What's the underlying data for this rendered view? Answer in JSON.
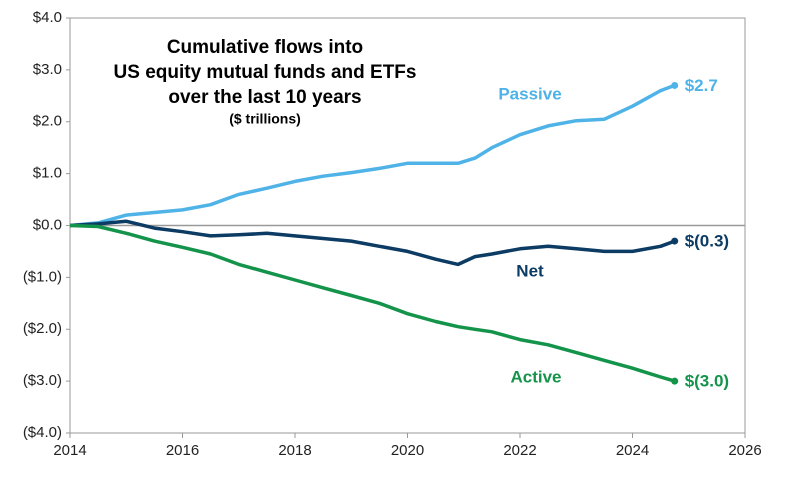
{
  "chart_data": {
    "type": "line",
    "title": [
      "Cumulative flows into",
      "US equity mutual funds and ETFs",
      "over the last 10 years"
    ],
    "subtitle": "($ trillions)",
    "x": [
      2014,
      2014.5,
      2015,
      2015.5,
      2016,
      2016.5,
      2017,
      2017.5,
      2018,
      2018.5,
      2019,
      2019.5,
      2020,
      2020.5,
      2020.9,
      2021.2,
      2021.5,
      2022,
      2022.5,
      2023,
      2023.5,
      2024,
      2024.5,
      2024.75
    ],
    "series": [
      {
        "name": "Passive",
        "color": "#4fb3e8",
        "values": [
          0,
          0.05,
          0.2,
          0.25,
          0.3,
          0.4,
          0.6,
          0.72,
          0.85,
          0.95,
          1.02,
          1.1,
          1.2,
          1.2,
          1.2,
          1.3,
          1.5,
          1.75,
          1.92,
          2.02,
          2.05,
          2.3,
          2.6,
          2.7
        ],
        "value_labels": [
          null,
          null,
          null,
          null,
          null,
          null,
          null,
          null,
          null,
          null,
          null,
          null,
          null,
          null,
          null,
          null,
          null,
          null,
          null,
          null,
          null,
          null,
          null,
          "$2.7"
        ]
      },
      {
        "name": "Net",
        "color": "#0c3b63",
        "values": [
          0,
          0.03,
          0.08,
          -0.05,
          -0.12,
          -0.2,
          -0.18,
          -0.15,
          -0.2,
          -0.25,
          -0.3,
          -0.4,
          -0.5,
          -0.65,
          -0.75,
          -0.6,
          -0.55,
          -0.45,
          -0.4,
          -0.45,
          -0.5,
          -0.5,
          -0.4,
          -0.3
        ],
        "value_labels": [
          null,
          null,
          null,
          null,
          null,
          null,
          null,
          null,
          null,
          null,
          null,
          null,
          null,
          null,
          null,
          null,
          null,
          null,
          null,
          null,
          null,
          null,
          null,
          "$(0.3)"
        ]
      },
      {
        "name": "Active",
        "color": "#14934a",
        "values": [
          0,
          -0.02,
          -0.15,
          -0.3,
          -0.42,
          -0.55,
          -0.75,
          -0.9,
          -1.05,
          -1.2,
          -1.35,
          -1.5,
          -1.7,
          -1.85,
          -1.95,
          -2.0,
          -2.05,
          -2.2,
          -2.3,
          -2.45,
          -2.6,
          -2.75,
          -2.92,
          -3.0
        ],
        "value_labels": [
          null,
          null,
          null,
          null,
          null,
          null,
          null,
          null,
          null,
          null,
          null,
          null,
          null,
          null,
          null,
          null,
          null,
          null,
          null,
          null,
          null,
          null,
          null,
          "$(3.0)"
        ]
      }
    ],
    "xlim": [
      2014,
      2026
    ],
    "xticks": [
      2014,
      2016,
      2018,
      2020,
      2022,
      2024,
      2026
    ],
    "ylim": [
      -4,
      4
    ],
    "yticks": [
      {
        "value": -4,
        "label": "($4.0)"
      },
      {
        "value": -3,
        "label": "($3.0)"
      },
      {
        "value": -2,
        "label": "($2.0)"
      },
      {
        "value": -1,
        "label": "($1.0)"
      },
      {
        "value": 0,
        "label": "$0.0"
      },
      {
        "value": 1,
        "label": "$1.0"
      },
      {
        "value": 2,
        "label": "$2.0"
      },
      {
        "value": 3,
        "label": "$3.0"
      },
      {
        "value": 4,
        "label": "$4.0"
      }
    ]
  }
}
